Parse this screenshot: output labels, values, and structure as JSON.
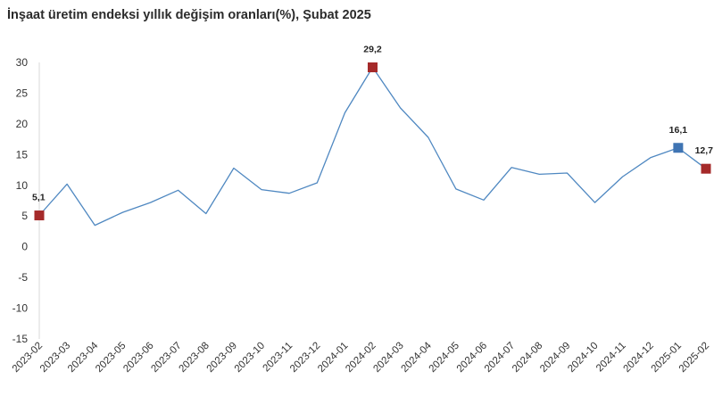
{
  "chart_data": {
    "type": "line",
    "title": "İnşaat üretim endeksi yıllık değişim oranları(%), Şubat 2025",
    "xlabel": "",
    "ylabel": "",
    "ylim": [
      -15,
      30
    ],
    "yticks": [
      "30",
      "25",
      "20",
      "15",
      "10",
      "5",
      "0",
      "-5",
      "-10",
      "-15"
    ],
    "grid": false,
    "legend": "none",
    "categories": [
      "2023-02",
      "2023-03",
      "2023-04",
      "2023-05",
      "2023-06",
      "2023-07",
      "2023-08",
      "2023-09",
      "2023-10",
      "2023-11",
      "2023-12",
      "2024-01",
      "2024-02",
      "2024-03",
      "2024-04",
      "2024-05",
      "2024-06",
      "2024-07",
      "2024-08",
      "2024-09",
      "2024-10",
      "2024-11",
      "2024-12",
      "2025-01",
      "2025-02"
    ],
    "series": [
      {
        "values": [
          5.1,
          10.2,
          3.5,
          5.6,
          7.2,
          9.2,
          5.4,
          12.8,
          9.3,
          8.7,
          10.4,
          21.8,
          29.2,
          22.6,
          17.8,
          9.4,
          7.6,
          12.9,
          11.8,
          12.0,
          7.2,
          11.4,
          14.5,
          16.1,
          12.7
        ],
        "color": "#4f88c1"
      }
    ],
    "highlighted_points": [
      {
        "index": 0,
        "label": "5,1",
        "color": "#a52a2a"
      },
      {
        "index": 12,
        "label": "29,2",
        "color": "#a52a2a"
      },
      {
        "index": 23,
        "label": "16,1",
        "color": "#3f74b3"
      },
      {
        "index": 24,
        "label": "12,7",
        "color": "#a52a2a"
      }
    ]
  }
}
